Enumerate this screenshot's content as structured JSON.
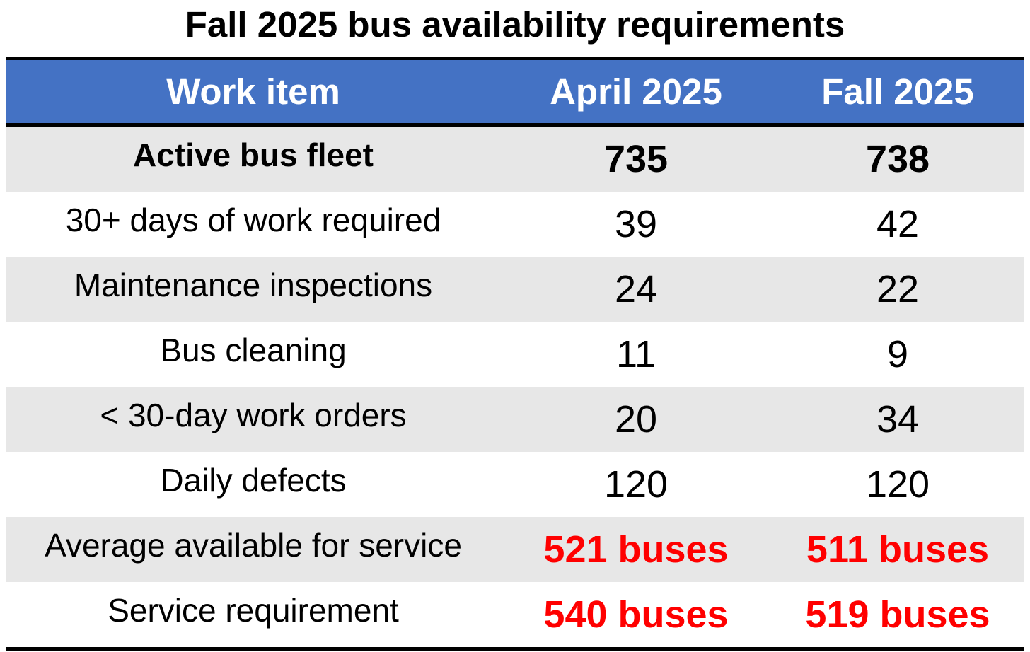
{
  "title": "Fall 2025 bus availability requirements",
  "header": {
    "col1": "Work item",
    "col2": "April 2025",
    "col3": "Fall 2025"
  },
  "rows": [
    {
      "label": "Active bus fleet",
      "april": "735",
      "fall": "738"
    },
    {
      "label": "30+ days of work required",
      "april": "39",
      "fall": "42"
    },
    {
      "label": "Maintenance inspections",
      "april": "24",
      "fall": "22"
    },
    {
      "label": "Bus cleaning",
      "april": "11",
      "fall": "9"
    },
    {
      "label": "< 30-day work orders",
      "april": "20",
      "fall": "34"
    },
    {
      "label": "Daily defects",
      "april": "120",
      "fall": "120"
    },
    {
      "label": "Average available for service",
      "april": "521 buses",
      "fall": "511 buses"
    },
    {
      "label": "Service requirement",
      "april": "540 buses",
      "fall": "519 buses"
    }
  ],
  "colors": {
    "header_bg": "#4472c4",
    "row_shade": "#e7e7e7",
    "highlight": "#ff0000"
  }
}
